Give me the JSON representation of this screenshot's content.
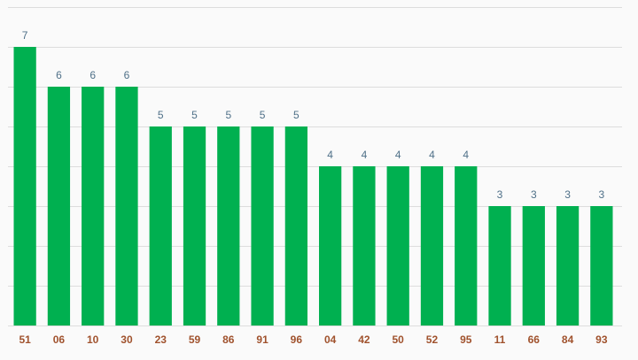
{
  "chart_data": {
    "type": "bar",
    "categories": [
      "51",
      "06",
      "10",
      "30",
      "23",
      "59",
      "86",
      "91",
      "96",
      "04",
      "42",
      "50",
      "52",
      "95",
      "11",
      "66",
      "84",
      "93"
    ],
    "values": [
      7,
      6,
      6,
      6,
      5,
      5,
      5,
      5,
      5,
      4,
      4,
      4,
      4,
      4,
      3,
      3,
      3,
      3
    ],
    "color": "#00b050",
    "ylim": [
      0,
      8
    ],
    "yticks": [
      0,
      1,
      2,
      3,
      4,
      5,
      6,
      7,
      8
    ],
    "grid": true
  }
}
